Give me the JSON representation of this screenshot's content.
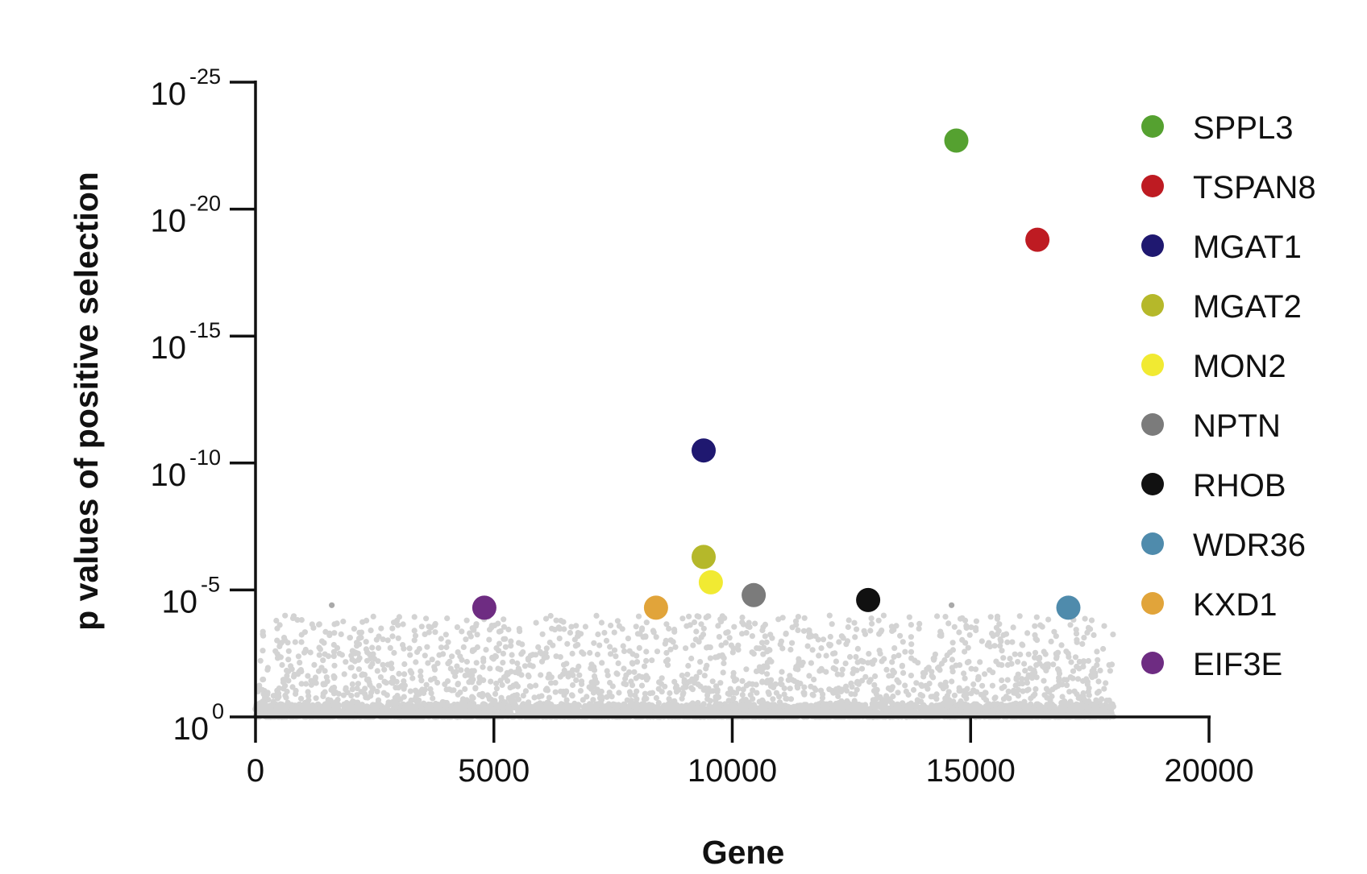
{
  "chart_data": {
    "type": "scatter",
    "title": "",
    "xlabel": "Gene",
    "ylabel": "p values of positive selection",
    "xlim": [
      0,
      20000
    ],
    "ylim": [
      1,
      1e-25
    ],
    "y_scale": "log (inverted, -log10 increasing upward)",
    "x_ticks": [
      {
        "value": 0,
        "label": "0"
      },
      {
        "value": 5000,
        "label": "5000"
      },
      {
        "value": 10000,
        "label": "10000"
      },
      {
        "value": 15000,
        "label": "15000"
      },
      {
        "value": 20000,
        "label": "20000"
      }
    ],
    "y_ticks": [
      {
        "exp": 0,
        "base": "10",
        "sup": "0"
      },
      {
        "exp": 5,
        "base": "10",
        "sup": "-5"
      },
      {
        "exp": 10,
        "base": "10",
        "sup": "-10"
      },
      {
        "exp": 15,
        "base": "10",
        "sup": "-15"
      },
      {
        "exp": 20,
        "base": "10",
        "sup": "-20"
      },
      {
        "exp": 25,
        "base": "10",
        "sup": "-25"
      }
    ],
    "grid": false,
    "legend_position": "right",
    "background_series": {
      "name": "",
      "color": "#d3d3d3",
      "gene_range": [
        0,
        18000
      ],
      "p_range": [
        1,
        0.0001
      ],
      "note_outliers": [
        {
          "x": 1600,
          "p": 3.98e-05
        },
        {
          "x": 14600,
          "p": 3.98e-05
        }
      ]
    },
    "highlighted": [
      {
        "name": "SPPL3",
        "x": 14700,
        "p": 2e-23,
        "color": "#55a130"
      },
      {
        "name": "TSPAN8",
        "x": 16400,
        "p": 1.6e-19,
        "color": "#be1b22"
      },
      {
        "name": "MGAT1",
        "x": 9400,
        "p": 3.2e-11,
        "color": "#1f1870"
      },
      {
        "name": "MGAT2",
        "x": 9400,
        "p": 5e-07,
        "color": "#b5b82a"
      },
      {
        "name": "MON2",
        "x": 9550,
        "p": 5e-06,
        "color": "#f1ea32"
      },
      {
        "name": "NPTN",
        "x": 10450,
        "p": 1.6e-05,
        "color": "#7b7b7b"
      },
      {
        "name": "RHOB",
        "x": 12850,
        "p": 2.5e-05,
        "color": "#111111"
      },
      {
        "name": "WDR36",
        "x": 17050,
        "p": 5e-05,
        "color": "#4f8bac"
      },
      {
        "name": "KXD1",
        "x": 8400,
        "p": 5e-05,
        "color": "#e1a43a"
      },
      {
        "name": "EIF3E",
        "x": 4800,
        "p": 5e-05,
        "color": "#6e2c82"
      }
    ]
  }
}
